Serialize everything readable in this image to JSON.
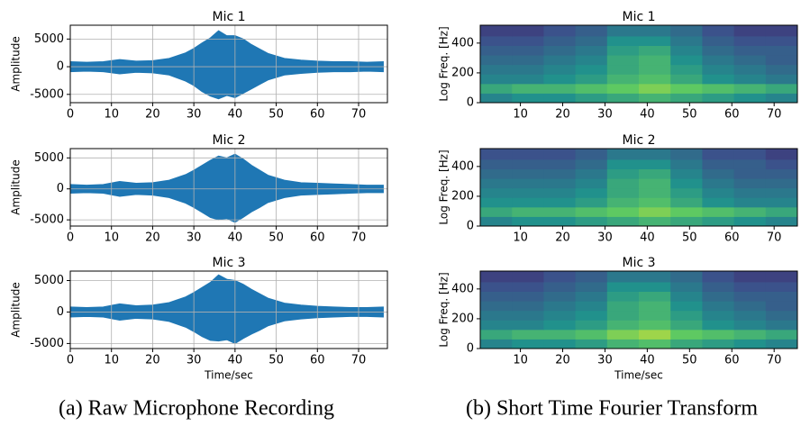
{
  "chart_data": [
    {
      "type": "envelope",
      "title": "Mic 1",
      "ylabel": "Amplitude",
      "color": "#1f77b4",
      "grid": true,
      "x": [
        0,
        4,
        8,
        12,
        16,
        20,
        24,
        28,
        30,
        32,
        34,
        36,
        38,
        40,
        42,
        44,
        46,
        48,
        52,
        56,
        60,
        64,
        68,
        72,
        76
      ],
      "values_high": [
        900,
        800,
        900,
        1300,
        1000,
        1100,
        1500,
        2500,
        3300,
        4300,
        5200,
        6500,
        5600,
        5600,
        5000,
        4000,
        3200,
        2400,
        1500,
        1200,
        1000,
        900,
        900,
        800,
        900
      ],
      "values_low": [
        -900,
        -800,
        -900,
        -1300,
        -1000,
        -1100,
        -1500,
        -2600,
        -3400,
        -4500,
        -5300,
        -5800,
        -5200,
        -5600,
        -4800,
        -4000,
        -3200,
        -2400,
        -1500,
        -1200,
        -1000,
        -900,
        -900,
        -800,
        -900
      ],
      "xlim": [
        0,
        77
      ],
      "xticks": [
        0,
        10,
        20,
        30,
        40,
        50,
        60,
        70
      ],
      "ylim": [
        -6500,
        7500
      ],
      "yticks": [
        -5000,
        0,
        5000
      ]
    },
    {
      "type": "envelope",
      "title": "Mic 2",
      "ylabel": "Amplitude",
      "color": "#1f77b4",
      "grid": true,
      "x": [
        0,
        4,
        8,
        12,
        16,
        20,
        24,
        28,
        30,
        32,
        34,
        36,
        38,
        40,
        42,
        44,
        46,
        48,
        52,
        56,
        60,
        64,
        68,
        72,
        76
      ],
      "values_high": [
        700,
        600,
        700,
        1200,
        900,
        1000,
        1400,
        2300,
        3000,
        3800,
        4600,
        5300,
        5000,
        5600,
        4800,
        3800,
        3000,
        2200,
        1400,
        1000,
        900,
        800,
        700,
        600,
        600
      ],
      "values_low": [
        -700,
        -600,
        -700,
        -1200,
        -900,
        -1000,
        -1400,
        -2300,
        -3000,
        -3800,
        -4600,
        -5000,
        -4800,
        -5400,
        -4600,
        -3700,
        -3000,
        -2200,
        -1400,
        -1000,
        -900,
        -800,
        -700,
        -600,
        -600
      ],
      "xlim": [
        0,
        77
      ],
      "xticks": [
        0,
        10,
        20,
        30,
        40,
        50,
        60,
        70
      ],
      "ylim": [
        -6000,
        6500
      ],
      "yticks": [
        -5000,
        0,
        5000
      ]
    },
    {
      "type": "envelope",
      "title": "Mic 3",
      "ylabel": "Amplitude",
      "xlabel": "Time/sec",
      "color": "#1f77b4",
      "grid": true,
      "x": [
        0,
        4,
        8,
        12,
        16,
        20,
        24,
        28,
        30,
        32,
        34,
        36,
        38,
        40,
        42,
        44,
        46,
        48,
        52,
        56,
        60,
        64,
        68,
        72,
        76
      ],
      "values_high": [
        800,
        700,
        800,
        1300,
        1000,
        1100,
        1500,
        2400,
        3100,
        3900,
        4700,
        5900,
        5200,
        5000,
        4400,
        3600,
        2900,
        2200,
        1400,
        1100,
        900,
        800,
        700,
        700,
        800
      ],
      "values_low": [
        -800,
        -700,
        -800,
        -1300,
        -1000,
        -1100,
        -1500,
        -2400,
        -3100,
        -3900,
        -4500,
        -4600,
        -4400,
        -5000,
        -4200,
        -3500,
        -2900,
        -2200,
        -1400,
        -1100,
        -900,
        -800,
        -700,
        -700,
        -800
      ],
      "xlim": [
        0,
        77
      ],
      "xticks": [
        0,
        10,
        20,
        30,
        40,
        50,
        60,
        70
      ],
      "ylim": [
        -5800,
        6500
      ],
      "yticks": [
        -5000,
        0,
        5000
      ]
    },
    {
      "type": "heatmap",
      "title": "Mic 1",
      "ylabel": "Log Freq. [Hz]",
      "colormap": "viridis",
      "x_edges": [
        0.5,
        8,
        15.5,
        23,
        30.5,
        38,
        45.5,
        53,
        60.5,
        68,
        75.5
      ],
      "y_edges": [
        0,
        64,
        128,
        192,
        256,
        320,
        384,
        448,
        520
      ],
      "z": [
        [
          0.45,
          0.5,
          0.5,
          0.55,
          0.6,
          0.65,
          0.6,
          0.55,
          0.5,
          0.45
        ],
        [
          0.6,
          0.65,
          0.65,
          0.7,
          0.75,
          0.8,
          0.75,
          0.7,
          0.65,
          0.6
        ],
        [
          0.45,
          0.45,
          0.5,
          0.55,
          0.65,
          0.7,
          0.6,
          0.5,
          0.45,
          0.4
        ],
        [
          0.4,
          0.4,
          0.45,
          0.5,
          0.6,
          0.65,
          0.55,
          0.45,
          0.4,
          0.35
        ],
        [
          0.35,
          0.35,
          0.4,
          0.45,
          0.6,
          0.65,
          0.5,
          0.4,
          0.35,
          0.3
        ],
        [
          0.3,
          0.3,
          0.35,
          0.4,
          0.55,
          0.6,
          0.45,
          0.35,
          0.3,
          0.3
        ],
        [
          0.25,
          0.25,
          0.3,
          0.35,
          0.5,
          0.5,
          0.4,
          0.3,
          0.25,
          0.25
        ],
        [
          0.2,
          0.2,
          0.25,
          0.3,
          0.4,
          0.4,
          0.35,
          0.25,
          0.2,
          0.2
        ]
      ],
      "xlim": [
        0.5,
        75.5
      ],
      "xticks": [
        10,
        20,
        30,
        40,
        50,
        60,
        70
      ],
      "ylim": [
        0,
        520
      ],
      "yticks": [
        0,
        200,
        400
      ]
    },
    {
      "type": "heatmap",
      "title": "Mic 2",
      "ylabel": "Log Freq. [Hz]",
      "colormap": "viridis",
      "x_edges": [
        0.5,
        8,
        15.5,
        23,
        30.5,
        38,
        45.5,
        53,
        60.5,
        68,
        75.5
      ],
      "y_edges": [
        0,
        64,
        128,
        192,
        256,
        320,
        384,
        448,
        520
      ],
      "z": [
        [
          0.45,
          0.5,
          0.5,
          0.55,
          0.6,
          0.65,
          0.6,
          0.55,
          0.5,
          0.45
        ],
        [
          0.6,
          0.65,
          0.65,
          0.7,
          0.75,
          0.8,
          0.75,
          0.7,
          0.65,
          0.6
        ],
        [
          0.5,
          0.5,
          0.5,
          0.55,
          0.65,
          0.7,
          0.6,
          0.5,
          0.45,
          0.45
        ],
        [
          0.45,
          0.45,
          0.45,
          0.5,
          0.6,
          0.65,
          0.55,
          0.45,
          0.4,
          0.4
        ],
        [
          0.4,
          0.4,
          0.4,
          0.45,
          0.6,
          0.65,
          0.5,
          0.4,
          0.35,
          0.35
        ],
        [
          0.35,
          0.35,
          0.35,
          0.4,
          0.55,
          0.6,
          0.45,
          0.35,
          0.3,
          0.3
        ],
        [
          0.3,
          0.3,
          0.3,
          0.35,
          0.5,
          0.5,
          0.4,
          0.3,
          0.3,
          0.25
        ],
        [
          0.25,
          0.25,
          0.25,
          0.3,
          0.4,
          0.4,
          0.35,
          0.25,
          0.25,
          0.2
        ]
      ],
      "xlim": [
        0.5,
        75.5
      ],
      "xticks": [
        10,
        20,
        30,
        40,
        50,
        60,
        70
      ],
      "ylim": [
        0,
        520
      ],
      "yticks": [
        0,
        200,
        400
      ]
    },
    {
      "type": "heatmap",
      "title": "Mic 3",
      "ylabel": "Log Freq. [Hz]",
      "xlabel": "Time/sec",
      "colormap": "viridis",
      "x_edges": [
        0.5,
        8,
        15.5,
        23,
        30.5,
        38,
        45.5,
        53,
        60.5,
        68,
        75.5
      ],
      "y_edges": [
        0,
        64,
        128,
        192,
        256,
        320,
        384,
        448,
        520
      ],
      "z": [
        [
          0.45,
          0.5,
          0.5,
          0.55,
          0.65,
          0.7,
          0.6,
          0.55,
          0.5,
          0.45
        ],
        [
          0.6,
          0.65,
          0.65,
          0.7,
          0.8,
          0.85,
          0.75,
          0.7,
          0.65,
          0.6
        ],
        [
          0.45,
          0.45,
          0.5,
          0.55,
          0.65,
          0.7,
          0.6,
          0.5,
          0.45,
          0.4
        ],
        [
          0.4,
          0.4,
          0.45,
          0.5,
          0.6,
          0.65,
          0.55,
          0.45,
          0.4,
          0.35
        ],
        [
          0.35,
          0.35,
          0.4,
          0.45,
          0.6,
          0.65,
          0.5,
          0.4,
          0.35,
          0.3
        ],
        [
          0.3,
          0.3,
          0.35,
          0.4,
          0.55,
          0.6,
          0.45,
          0.35,
          0.3,
          0.3
        ],
        [
          0.25,
          0.25,
          0.3,
          0.35,
          0.5,
          0.5,
          0.4,
          0.3,
          0.25,
          0.25
        ],
        [
          0.2,
          0.2,
          0.25,
          0.3,
          0.4,
          0.4,
          0.35,
          0.25,
          0.2,
          0.2
        ]
      ],
      "xlim": [
        0.5,
        75.5
      ],
      "xticks": [
        10,
        20,
        30,
        40,
        50,
        60,
        70
      ],
      "ylim": [
        0,
        520
      ],
      "yticks": [
        0,
        200,
        400
      ]
    }
  ],
  "captions": [
    "(a) Raw Microphone Recording",
    "(b) Short Time Fourier Transform"
  ]
}
